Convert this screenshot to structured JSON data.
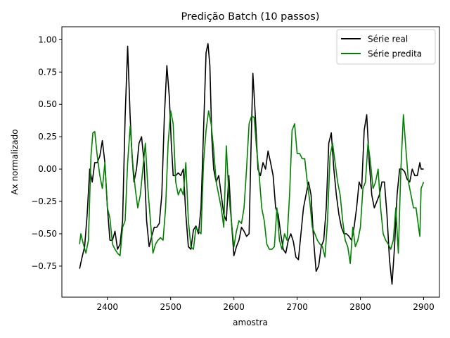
{
  "chart_data": {
    "type": "line",
    "title": "Predição Batch (10 passos)",
    "xlabel": "amostra",
    "ylabel": "Ax normalizado",
    "xlim": [
      2328,
      2925
    ],
    "ylim": [
      -0.99,
      1.1
    ],
    "xticks": [
      2400,
      2500,
      2600,
      2700,
      2800,
      2900
    ],
    "yticks": [
      -0.75,
      -0.5,
      -0.25,
      0.0,
      0.25,
      0.5,
      0.75,
      1.0
    ],
    "ytick_labels": [
      "−0.75",
      "−0.50",
      "−0.25",
      "0.00",
      "0.25",
      "0.50",
      "0.75",
      "1.00"
    ],
    "grid": false,
    "legend_position": "top-right",
    "series": [
      {
        "name": "Série real",
        "color": "#000000",
        "x": [
          2356,
          2360,
          2364,
          2368,
          2372,
          2376,
          2380,
          2384,
          2388,
          2392,
          2396,
          2400,
          2404,
          2408,
          2412,
          2416,
          2420,
          2424,
          2428,
          2432,
          2436,
          2439,
          2442,
          2446,
          2450,
          2454,
          2458,
          2462,
          2466,
          2470,
          2474,
          2478,
          2482,
          2486,
          2490,
          2494,
          2498,
          2501,
          2504,
          2508,
          2512,
          2516,
          2520,
          2524,
          2528,
          2532,
          2536,
          2540,
          2544,
          2548,
          2552,
          2556,
          2559,
          2562,
          2565,
          2568,
          2572,
          2576,
          2580,
          2584,
          2588,
          2592,
          2596,
          2600,
          2604,
          2608,
          2612,
          2616,
          2620,
          2624,
          2627,
          2630,
          2634,
          2638,
          2642,
          2646,
          2650,
          2654,
          2658,
          2662,
          2666,
          2670,
          2674,
          2678,
          2682,
          2686,
          2690,
          2694,
          2698,
          2702,
          2706,
          2710,
          2714,
          2718,
          2722,
          2726,
          2730,
          2734,
          2738,
          2742,
          2746,
          2750,
          2754,
          2758,
          2762,
          2766,
          2770,
          2774,
          2778,
          2782,
          2786,
          2790,
          2794,
          2798,
          2802,
          2806,
          2810,
          2814,
          2818,
          2822,
          2826,
          2830,
          2834,
          2838,
          2842,
          2846,
          2850,
          2854,
          2858,
          2862,
          2866,
          2870,
          2874,
          2878,
          2882,
          2886,
          2890,
          2894,
          2896,
          2900
        ],
        "values": [
          -0.77,
          -0.68,
          -0.6,
          -0.35,
          0.0,
          -0.1,
          0.05,
          0.05,
          0.1,
          0.22,
          0.05,
          -0.3,
          -0.55,
          -0.55,
          -0.48,
          -0.62,
          -0.58,
          -0.4,
          0.4,
          0.95,
          0.4,
          0.1,
          -0.1,
          0.0,
          0.2,
          0.25,
          0.05,
          -0.4,
          -0.6,
          -0.52,
          -0.45,
          -0.45,
          -0.42,
          -0.2,
          0.4,
          0.8,
          0.55,
          0.2,
          -0.05,
          -0.05,
          -0.03,
          -0.05,
          0.0,
          -0.35,
          -0.6,
          -0.62,
          -0.47,
          -0.44,
          -0.5,
          -0.3,
          0.3,
          0.9,
          0.97,
          0.8,
          0.25,
          0.0,
          -0.1,
          -0.05,
          -0.2,
          -0.35,
          -0.4,
          -0.05,
          -0.4,
          -0.67,
          -0.6,
          -0.55,
          -0.45,
          -0.48,
          -0.52,
          -0.5,
          0.15,
          0.74,
          0.4,
          0.0,
          -0.05,
          0.05,
          0.0,
          0.14,
          0.05,
          -0.05,
          -0.3,
          -0.35,
          -0.5,
          -0.62,
          -0.65,
          -0.55,
          -0.5,
          -0.56,
          -0.68,
          -0.7,
          -0.5,
          -0.3,
          -0.2,
          -0.1,
          -0.2,
          -0.55,
          -0.79,
          -0.75,
          -0.6,
          -0.55,
          -0.3,
          0.2,
          0.28,
          0.0,
          -0.2,
          -0.35,
          -0.45,
          -0.5,
          -0.5,
          -0.52,
          -0.55,
          -0.45,
          -0.3,
          -0.1,
          -0.15,
          0.3,
          0.42,
          0.05,
          -0.2,
          -0.3,
          -0.25,
          -0.2,
          -0.1,
          -0.1,
          -0.35,
          -0.7,
          -0.89,
          -0.6,
          -0.2,
          0.0,
          0.0,
          -0.02,
          -0.08,
          -0.1,
          0.0,
          -0.05,
          -0.05,
          0.05,
          0.0,
          0.0
        ],
        "visible_range": [
          2356,
          2900
        ]
      },
      {
        "name": "Série predita",
        "color": "#008000",
        "x": [
          2356,
          2358,
          2362,
          2366,
          2370,
          2374,
          2377,
          2380,
          2384,
          2388,
          2392,
          2396,
          2400,
          2404,
          2408,
          2412,
          2416,
          2420,
          2424,
          2428,
          2432,
          2436,
          2440,
          2444,
          2448,
          2452,
          2456,
          2460,
          2464,
          2468,
          2472,
          2476,
          2480,
          2484,
          2488,
          2492,
          2496,
          2500,
          2504,
          2508,
          2512,
          2516,
          2520,
          2524,
          2528,
          2532,
          2536,
          2540,
          2544,
          2548,
          2552,
          2556,
          2560,
          2564,
          2568,
          2572,
          2576,
          2580,
          2584,
          2588,
          2592,
          2596,
          2600,
          2604,
          2608,
          2612,
          2616,
          2620,
          2624,
          2628,
          2632,
          2636,
          2640,
          2644,
          2648,
          2652,
          2656,
          2660,
          2664,
          2668,
          2672,
          2676,
          2680,
          2684,
          2688,
          2692,
          2696,
          2700,
          2704,
          2708,
          2712,
          2716,
          2720,
          2724,
          2728,
          2732,
          2736,
          2740,
          2744,
          2748,
          2752,
          2756,
          2760,
          2764,
          2768,
          2772,
          2776,
          2780,
          2784,
          2788,
          2792,
          2796,
          2800,
          2804,
          2808,
          2812,
          2816,
          2820,
          2824,
          2828,
          2832,
          2836,
          2840,
          2844,
          2848,
          2852,
          2856,
          2860,
          2864,
          2868,
          2872,
          2876,
          2880,
          2884,
          2888,
          2892,
          2894,
          2896,
          2900
        ],
        "values": [
          -0.58,
          -0.5,
          -0.58,
          -0.65,
          -0.55,
          0.1,
          0.28,
          0.29,
          0.1,
          -0.05,
          -0.15,
          0.05,
          -0.3,
          -0.38,
          -0.58,
          -0.62,
          -0.65,
          -0.67,
          -0.45,
          -0.4,
          0.05,
          0.33,
          0.05,
          -0.15,
          -0.3,
          -0.2,
          0.0,
          0.2,
          -0.15,
          -0.4,
          -0.65,
          -0.58,
          -0.55,
          -0.53,
          -0.55,
          -0.3,
          0.2,
          0.45,
          0.35,
          -0.1,
          -0.2,
          -0.15,
          -0.2,
          0.05,
          -0.4,
          -0.6,
          -0.62,
          -0.45,
          -0.48,
          -0.5,
          0.05,
          0.3,
          0.45,
          0.35,
          0.15,
          -0.1,
          -0.2,
          -0.3,
          -0.45,
          0.18,
          -0.2,
          -0.4,
          -0.6,
          -0.48,
          -0.4,
          -0.42,
          -0.3,
          0.0,
          0.35,
          0.41,
          0.4,
          0.15,
          -0.05,
          -0.3,
          -0.4,
          -0.58,
          -0.62,
          -0.62,
          -0.6,
          -0.3,
          -0.55,
          -0.62,
          -0.5,
          -0.55,
          -0.2,
          0.3,
          0.35,
          0.12,
          0.12,
          0.08,
          0.08,
          -0.1,
          -0.25,
          -0.45,
          -0.5,
          -0.55,
          -0.58,
          -0.6,
          -0.68,
          -0.4,
          0.1,
          0.2,
          0.05,
          -0.1,
          -0.2,
          -0.4,
          -0.55,
          -0.6,
          -0.73,
          -0.45,
          -0.6,
          -0.55,
          -0.45,
          -0.15,
          -0.1,
          0.2,
          0.05,
          -0.15,
          -0.1,
          0.0,
          -0.3,
          -0.5,
          -0.55,
          -0.58,
          -0.62,
          -0.55,
          -0.3,
          -0.65,
          0.0,
          0.42,
          0.15,
          -0.1,
          -0.2,
          -0.3,
          -0.3,
          -0.45,
          -0.52,
          -0.15,
          -0.1
        ],
        "visible_range": [
          2356,
          2900
        ]
      }
    ]
  }
}
